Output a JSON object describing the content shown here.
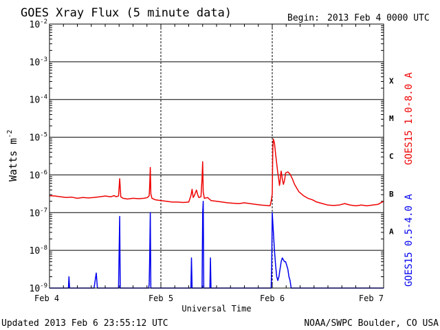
{
  "chart_data": {
    "type": "line",
    "title": "GOES Xray Flux (5 minute data)",
    "begin_label": "Begin:",
    "begin_value": "2013 Feb 4 0000 UTC",
    "updated": "Updated 2013 Feb  6 23:55:12 UTC",
    "credit": "NOAA/SWPC Boulder, CO USA",
    "xlabel": "Universal Time",
    "ylabel_base": "Watts m",
    "ylabel_exp": "-2",
    "x_ticks": [
      {
        "label": "Feb 4",
        "day": 0
      },
      {
        "label": "Feb 5",
        "day": 1
      },
      {
        "label": "Feb 6",
        "day": 2
      },
      {
        "label": "Feb 7",
        "day": 3
      }
    ],
    "xlim_days": [
      0,
      3
    ],
    "y_scale": "log",
    "ylim_exp": [
      -9,
      -2
    ],
    "y_tick_exps": [
      -9,
      -8,
      -7,
      -6,
      -5,
      -4,
      -3,
      -2
    ],
    "class_labels": [
      {
        "label": "A",
        "exp": -8
      },
      {
        "label": "B",
        "exp": -7
      },
      {
        "label": "C",
        "exp": -6
      },
      {
        "label": "M",
        "exp": -5
      },
      {
        "label": "X",
        "exp": -4
      }
    ],
    "grid": true,
    "series": [
      {
        "name": "GOES15 1.0-8.0 A",
        "color": "#ee0000",
        "points": [
          [
            0.0,
            -6.55
          ],
          [
            0.05,
            -6.56
          ],
          [
            0.1,
            -6.58
          ],
          [
            0.15,
            -6.6
          ],
          [
            0.2,
            -6.59
          ],
          [
            0.25,
            -6.62
          ],
          [
            0.3,
            -6.6
          ],
          [
            0.35,
            -6.61
          ],
          [
            0.4,
            -6.6
          ],
          [
            0.45,
            -6.58
          ],
          [
            0.5,
            -6.56
          ],
          [
            0.55,
            -6.58
          ],
          [
            0.58,
            -6.55
          ],
          [
            0.6,
            -6.58
          ],
          [
            0.62,
            -6.56
          ],
          [
            0.63,
            -6.1
          ],
          [
            0.64,
            -6.58
          ],
          [
            0.66,
            -6.62
          ],
          [
            0.7,
            -6.64
          ],
          [
            0.75,
            -6.62
          ],
          [
            0.8,
            -6.63
          ],
          [
            0.85,
            -6.62
          ],
          [
            0.88,
            -6.6
          ],
          [
            0.895,
            -6.55
          ],
          [
            0.9,
            -6.25
          ],
          [
            0.905,
            -5.8
          ],
          [
            0.91,
            -6.5
          ],
          [
            0.92,
            -6.62
          ],
          [
            0.95,
            -6.66
          ],
          [
            1.0,
            -6.68
          ],
          [
            1.05,
            -6.7
          ],
          [
            1.1,
            -6.72
          ],
          [
            1.15,
            -6.72
          ],
          [
            1.2,
            -6.73
          ],
          [
            1.25,
            -6.72
          ],
          [
            1.27,
            -6.55
          ],
          [
            1.28,
            -6.38
          ],
          [
            1.29,
            -6.6
          ],
          [
            1.3,
            -6.55
          ],
          [
            1.32,
            -6.4
          ],
          [
            1.33,
            -6.52
          ],
          [
            1.34,
            -6.6
          ],
          [
            1.36,
            -6.58
          ],
          [
            1.37,
            -6.1
          ],
          [
            1.375,
            -5.65
          ],
          [
            1.38,
            -6.45
          ],
          [
            1.39,
            -6.62
          ],
          [
            1.42,
            -6.6
          ],
          [
            1.45,
            -6.68
          ],
          [
            1.5,
            -6.7
          ],
          [
            1.55,
            -6.72
          ],
          [
            1.6,
            -6.74
          ],
          [
            1.65,
            -6.75
          ],
          [
            1.7,
            -6.76
          ],
          [
            1.75,
            -6.74
          ],
          [
            1.8,
            -6.76
          ],
          [
            1.85,
            -6.78
          ],
          [
            1.9,
            -6.8
          ],
          [
            1.95,
            -6.81
          ],
          [
            1.98,
            -6.82
          ],
          [
            1.99,
            -6.7
          ],
          [
            2.0,
            -6.5
          ],
          [
            2.005,
            -5.3
          ],
          [
            2.01,
            -5.05
          ],
          [
            2.02,
            -5.15
          ],
          [
            2.03,
            -5.45
          ],
          [
            2.04,
            -5.7
          ],
          [
            2.05,
            -5.95
          ],
          [
            2.06,
            -6.15
          ],
          [
            2.065,
            -6.28
          ],
          [
            2.07,
            -6.2
          ],
          [
            2.075,
            -6.0
          ],
          [
            2.08,
            -5.9
          ],
          [
            2.09,
            -6.1
          ],
          [
            2.1,
            -6.25
          ],
          [
            2.11,
            -6.15
          ],
          [
            2.12,
            -5.95
          ],
          [
            2.14,
            -5.92
          ],
          [
            2.16,
            -5.98
          ],
          [
            2.18,
            -6.1
          ],
          [
            2.2,
            -6.25
          ],
          [
            2.22,
            -6.35
          ],
          [
            2.24,
            -6.45
          ],
          [
            2.28,
            -6.55
          ],
          [
            2.32,
            -6.62
          ],
          [
            2.36,
            -6.66
          ],
          [
            2.4,
            -6.72
          ],
          [
            2.45,
            -6.76
          ],
          [
            2.5,
            -6.8
          ],
          [
            2.55,
            -6.81
          ],
          [
            2.6,
            -6.8
          ],
          [
            2.65,
            -6.76
          ],
          [
            2.7,
            -6.8
          ],
          [
            2.75,
            -6.82
          ],
          [
            2.8,
            -6.8
          ],
          [
            2.85,
            -6.82
          ],
          [
            2.9,
            -6.8
          ],
          [
            2.95,
            -6.78
          ],
          [
            3.0,
            -6.7
          ]
        ]
      },
      {
        "name": "GOES15 0.5-4.0 A",
        "color": "#0000ee",
        "points": [
          [
            0.0,
            -9.0
          ],
          [
            0.15,
            -9.0
          ],
          [
            0.17,
            -9.0
          ],
          [
            0.175,
            -8.7
          ],
          [
            0.18,
            -9.0
          ],
          [
            0.4,
            -9.0
          ],
          [
            0.42,
            -8.6
          ],
          [
            0.43,
            -9.0
          ],
          [
            0.62,
            -9.0
          ],
          [
            0.625,
            -8.0
          ],
          [
            0.63,
            -7.1
          ],
          [
            0.635,
            -9.0
          ],
          [
            0.7,
            -9.0
          ],
          [
            0.89,
            -9.0
          ],
          [
            0.895,
            -8.9
          ],
          [
            0.9,
            -8.1
          ],
          [
            0.905,
            -7.0
          ],
          [
            0.91,
            -9.0
          ],
          [
            1.2,
            -9.0
          ],
          [
            1.27,
            -9.0
          ],
          [
            1.275,
            -8.2
          ],
          [
            1.28,
            -9.0
          ],
          [
            1.37,
            -9.0
          ],
          [
            1.375,
            -7.0
          ],
          [
            1.38,
            -6.7
          ],
          [
            1.385,
            -9.0
          ],
          [
            1.44,
            -9.0
          ],
          [
            1.445,
            -8.2
          ],
          [
            1.45,
            -9.0
          ],
          [
            1.99,
            -9.0
          ],
          [
            1.995,
            -8.4
          ],
          [
            2.0,
            -7.0
          ],
          [
            2.01,
            -7.5
          ],
          [
            2.02,
            -8.0
          ],
          [
            2.03,
            -8.4
          ],
          [
            2.04,
            -8.7
          ],
          [
            2.05,
            -8.8
          ],
          [
            2.06,
            -8.7
          ],
          [
            2.07,
            -8.5
          ],
          [
            2.08,
            -8.3
          ],
          [
            2.09,
            -8.2
          ],
          [
            2.1,
            -8.25
          ],
          [
            2.11,
            -8.3
          ],
          [
            2.12,
            -8.3
          ],
          [
            2.13,
            -8.4
          ],
          [
            2.14,
            -8.5
          ],
          [
            2.15,
            -8.7
          ],
          [
            2.16,
            -8.8
          ],
          [
            2.17,
            -9.0
          ],
          [
            2.2,
            -9.0
          ],
          [
            3.0,
            -9.0
          ]
        ]
      }
    ]
  }
}
